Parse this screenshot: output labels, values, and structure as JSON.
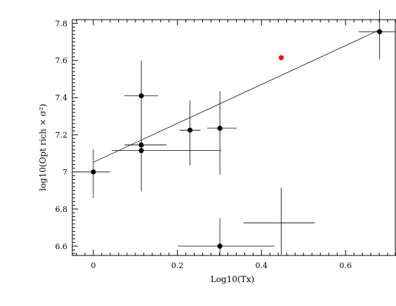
{
  "chart_data": {
    "type": "scatter",
    "title": "",
    "xlabel": "Log10(Tx)",
    "ylabel": "log10(Opt  rich × σ²)",
    "xlim": [
      -0.05,
      0.72
    ],
    "ylim": [
      6.55,
      7.82
    ],
    "grid": false,
    "x_ticks": [
      0,
      0.2,
      0.4,
      0.6
    ],
    "x_tick_labels": [
      "0",
      "0.2",
      "0.4",
      "0.6"
    ],
    "y_ticks": [
      6.6,
      6.8,
      7.0,
      7.2,
      7.4,
      7.6,
      7.8
    ],
    "y_tick_labels": [
      "6.6",
      "6.8",
      "7",
      "7.2",
      "7.4",
      "7.6",
      "7.8"
    ],
    "points": [
      {
        "x": 0.0,
        "y": 7.0,
        "xerr_lo": 0.04,
        "xerr_hi": 0.04,
        "yerr_lo": 0.14,
        "yerr_hi": 0.12,
        "marker": "dot"
      },
      {
        "x": 0.114,
        "y": 7.41,
        "xerr_lo": 0.04,
        "xerr_hi": 0.04,
        "yerr_lo": 0.23,
        "yerr_hi": 0.19,
        "marker": "dot"
      },
      {
        "x": 0.114,
        "y": 7.145,
        "xerr_lo": 0.04,
        "xerr_hi": 0.06,
        "yerr_lo": 0.03,
        "yerr_hi": 0.03,
        "marker": "dot"
      },
      {
        "x": 0.114,
        "y": 7.115,
        "xerr_lo": 0.07,
        "xerr_hi": 0.19,
        "yerr_lo": 0.22,
        "yerr_hi": 0.08,
        "marker": "dot"
      },
      {
        "x": 0.23,
        "y": 7.225,
        "xerr_lo": 0.025,
        "xerr_hi": 0.025,
        "yerr_lo": 0.19,
        "yerr_hi": 0.16,
        "marker": "dot"
      },
      {
        "x": 0.301,
        "y": 7.235,
        "xerr_lo": 0.03,
        "xerr_hi": 0.04,
        "yerr_lo": 0.25,
        "yerr_hi": 0.2,
        "marker": "dot"
      },
      {
        "x": 0.301,
        "y": 6.6,
        "xerr_lo": 0.1,
        "xerr_hi": 0.13,
        "yerr_lo": 0.05,
        "yerr_hi": 0.15,
        "marker": "dot"
      },
      {
        "x": 0.447,
        "y": 6.725,
        "xerr_lo": 0.09,
        "xerr_hi": 0.08,
        "yerr_lo": 0.17,
        "yerr_hi": 0.19,
        "marker": "none"
      },
      {
        "x": 0.681,
        "y": 7.755,
        "xerr_lo": 0.05,
        "xerr_hi": 0.05,
        "yerr_lo": 0.15,
        "yerr_hi": 0.12,
        "marker": "dot"
      },
      {
        "x": 0.447,
        "y": 7.615,
        "xerr_lo": 0,
        "xerr_hi": 0,
        "yerr_lo": 0,
        "yerr_hi": 0,
        "marker": "red-dot"
      }
    ],
    "fit_line": {
      "x": [
        0.0,
        0.681
      ],
      "y": [
        7.052,
        7.765
      ]
    },
    "colors": {
      "points": "#000000",
      "highlight": "#ff0000",
      "axes": "#000000"
    }
  }
}
